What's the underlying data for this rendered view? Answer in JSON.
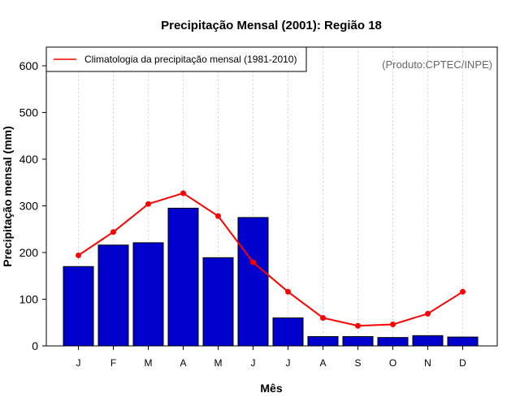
{
  "chart_data": {
    "type": "bar",
    "title": "Precipitação Mensal (2001): Região 18",
    "xlabel": "Mês",
    "ylabel": "Precipitação mensal (mm)",
    "ylim": [
      0,
      640
    ],
    "yticks": [
      0,
      100,
      200,
      300,
      400,
      500,
      600
    ],
    "categories": [
      "J",
      "F",
      "M",
      "A",
      "M",
      "J",
      "J",
      "A",
      "S",
      "O",
      "N",
      "D"
    ],
    "series": [
      {
        "name": "Precipitação mensal (2001)",
        "type": "bar",
        "color": "#0000CD",
        "values": [
          170,
          216,
          221,
          295,
          189,
          275,
          60,
          20,
          20,
          18,
          22,
          19
        ]
      },
      {
        "name": "Climatologia da precipitação mensal (1981-2010)",
        "type": "line",
        "color": "#FF0000",
        "values": [
          194,
          244,
          304,
          327,
          278,
          179,
          116,
          60,
          43,
          46,
          69,
          116
        ]
      }
    ],
    "legend": {
      "position": "top-left",
      "entries": [
        "Climatologia da precipitação mensal (1981-2010)"
      ]
    },
    "annotation": "(Produto:CPTEC/INPE)",
    "grid": "vertical-dotted"
  }
}
